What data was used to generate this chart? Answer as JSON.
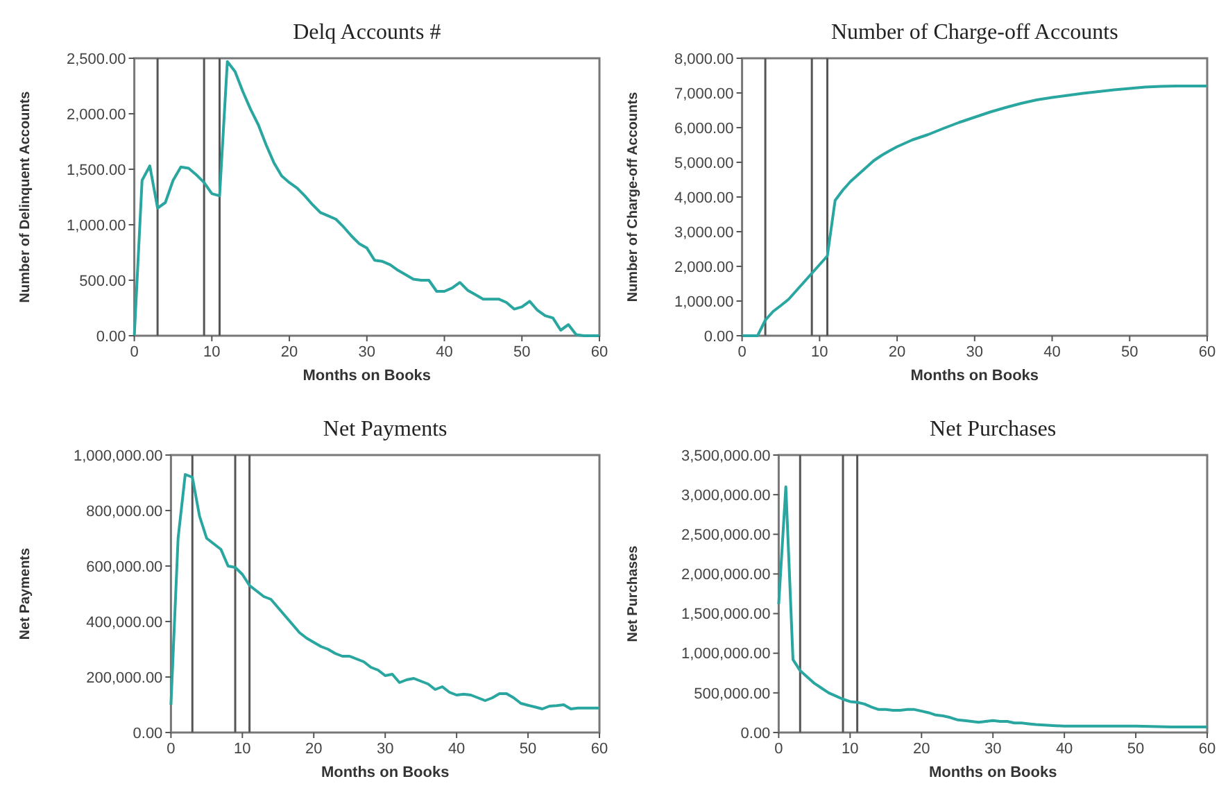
{
  "chart_data": [
    {
      "type": "line",
      "title": "Delq Accounts #",
      "xlabel": "Months on Books",
      "ylabel": "Number of Delinquent Accounts",
      "xlim": [
        0,
        60
      ],
      "xticks": [
        0,
        10,
        20,
        30,
        40,
        50,
        60
      ],
      "ylim": [
        0,
        2500
      ],
      "yticks": [
        {
          "value": 0,
          "label": "0.00"
        },
        {
          "value": 500,
          "label": "500.00"
        },
        {
          "value": 1000,
          "label": "1,000.00"
        },
        {
          "value": 1500,
          "label": "1,500.00"
        },
        {
          "value": 2000,
          "label": "2,000.00"
        },
        {
          "value": 2500,
          "label": "2,500.00"
        }
      ],
      "grid": false,
      "marker": "none",
      "line_style": "solid",
      "x": [
        0,
        1,
        2,
        3,
        4,
        5,
        6,
        7,
        8,
        9,
        10,
        11,
        12,
        13,
        14,
        15,
        16,
        17,
        18,
        19,
        20,
        21,
        22,
        23,
        24,
        25,
        26,
        27,
        28,
        29,
        30,
        31,
        32,
        33,
        34,
        35,
        36,
        37,
        38,
        39,
        40,
        41,
        42,
        43,
        44,
        45,
        46,
        47,
        48,
        49,
        50,
        51,
        52,
        53,
        54,
        55,
        56,
        57,
        58,
        59,
        60
      ],
      "series": [
        {
          "color": "#2aa6a0",
          "values": [
            0,
            1400,
            1530,
            1150,
            1200,
            1400,
            1520,
            1510,
            1450,
            1380,
            1280,
            1260,
            2470,
            2380,
            2200,
            2040,
            1900,
            1720,
            1560,
            1440,
            1380,
            1330,
            1260,
            1180,
            1110,
            1080,
            1050,
            980,
            900,
            830,
            790,
            680,
            670,
            640,
            590,
            550,
            510,
            500,
            500,
            400,
            400,
            430,
            480,
            410,
            370,
            330,
            330,
            330,
            300,
            240,
            260,
            310,
            230,
            180,
            160,
            50,
            100,
            10,
            0,
            0,
            0
          ]
        }
      ],
      "ref_lines": [
        {
          "axis": "x",
          "value": 3,
          "color": "#555555"
        },
        {
          "axis": "x",
          "value": 9,
          "color": "#555555"
        },
        {
          "axis": "x",
          "value": 11,
          "color": "#555555"
        }
      ]
    },
    {
      "type": "line",
      "title": "Number of Charge-off Accounts",
      "xlabel": "Months on Books",
      "ylabel": "Number of Charge-off Accounts",
      "xlim": [
        0,
        60
      ],
      "xticks": [
        0,
        10,
        20,
        30,
        40,
        50,
        60
      ],
      "ylim": [
        0,
        8000
      ],
      "yticks": [
        {
          "value": 0,
          "label": "0.00"
        },
        {
          "value": 1000,
          "label": "1,000.00"
        },
        {
          "value": 2000,
          "label": "2,000.00"
        },
        {
          "value": 3000,
          "label": "3,000.00"
        },
        {
          "value": 4000,
          "label": "4,000.00"
        },
        {
          "value": 5000,
          "label": "5,000.00"
        },
        {
          "value": 6000,
          "label": "6,000.00"
        },
        {
          "value": 7000,
          "label": "7,000.00"
        },
        {
          "value": 8000,
          "label": "8,000.00"
        }
      ],
      "grid": false,
      "marker": "none",
      "line_style": "solid",
      "x": [
        0,
        1,
        2,
        3,
        4,
        5,
        6,
        7,
        8,
        9,
        10,
        11,
        12,
        13,
        14,
        15,
        16,
        17,
        18,
        19,
        20,
        22,
        24,
        26,
        28,
        30,
        32,
        34,
        36,
        38,
        40,
        42,
        44,
        46,
        48,
        50,
        52,
        54,
        56,
        58,
        60
      ],
      "series": [
        {
          "color": "#2aa6a0",
          "values": [
            0,
            0,
            0,
            450,
            700,
            870,
            1050,
            1300,
            1550,
            1800,
            2050,
            2300,
            3900,
            4200,
            4450,
            4650,
            4850,
            5050,
            5200,
            5330,
            5450,
            5650,
            5800,
            5980,
            6150,
            6300,
            6450,
            6580,
            6700,
            6800,
            6870,
            6930,
            6990,
            7040,
            7090,
            7130,
            7170,
            7190,
            7200,
            7200,
            7200
          ]
        }
      ],
      "ref_lines": [
        {
          "axis": "x",
          "value": 3,
          "color": "#555555"
        },
        {
          "axis": "x",
          "value": 9,
          "color": "#555555"
        },
        {
          "axis": "x",
          "value": 11,
          "color": "#555555"
        }
      ]
    },
    {
      "type": "line",
      "title": "Net Payments",
      "xlabel": "Months on Books",
      "ylabel": "Net Payments",
      "xlim": [
        0,
        60
      ],
      "xticks": [
        0,
        10,
        20,
        30,
        40,
        50,
        60
      ],
      "ylim": [
        0,
        1000000
      ],
      "yticks": [
        {
          "value": 0,
          "label": "0.00"
        },
        {
          "value": 200000,
          "label": "200,000.00"
        },
        {
          "value": 400000,
          "label": "400,000.00"
        },
        {
          "value": 600000,
          "label": "600,000.00"
        },
        {
          "value": 800000,
          "label": "800,000.00"
        },
        {
          "value": 1000000,
          "label": "1,000,000.00"
        }
      ],
      "grid": false,
      "marker": "none",
      "line_style": "solid",
      "x": [
        0,
        1,
        2,
        3,
        4,
        5,
        6,
        7,
        8,
        9,
        10,
        11,
        12,
        13,
        14,
        15,
        16,
        17,
        18,
        19,
        20,
        21,
        22,
        23,
        24,
        25,
        26,
        27,
        28,
        29,
        30,
        31,
        32,
        33,
        34,
        35,
        36,
        37,
        38,
        39,
        40,
        41,
        42,
        43,
        44,
        45,
        46,
        47,
        48,
        49,
        50,
        51,
        52,
        53,
        54,
        55,
        56,
        57,
        58,
        59,
        60
      ],
      "series": [
        {
          "color": "#2aa6a0",
          "values": [
            100000,
            700000,
            930000,
            920000,
            780000,
            700000,
            680000,
            660000,
            600000,
            595000,
            570000,
            530000,
            510000,
            490000,
            480000,
            450000,
            420000,
            390000,
            360000,
            340000,
            325000,
            310000,
            300000,
            285000,
            275000,
            275000,
            265000,
            255000,
            235000,
            225000,
            205000,
            210000,
            180000,
            190000,
            195000,
            185000,
            175000,
            155000,
            165000,
            145000,
            135000,
            138000,
            135000,
            125000,
            115000,
            125000,
            140000,
            140000,
            125000,
            105000,
            98000,
            92000,
            85000,
            95000,
            97000,
            100000,
            85000,
            88000,
            88000,
            88000,
            88000
          ]
        }
      ],
      "ref_lines": [
        {
          "axis": "x",
          "value": 3,
          "color": "#555555"
        },
        {
          "axis": "x",
          "value": 9,
          "color": "#555555"
        },
        {
          "axis": "x",
          "value": 11,
          "color": "#555555"
        }
      ]
    },
    {
      "type": "line",
      "title": "Net Purchases",
      "xlabel": "Months on Books",
      "ylabel": "Net Purchases",
      "xlim": [
        0,
        60
      ],
      "xticks": [
        0,
        10,
        20,
        30,
        40,
        50,
        60
      ],
      "ylim": [
        0,
        3500000
      ],
      "yticks": [
        {
          "value": 0,
          "label": "0.00"
        },
        {
          "value": 500000,
          "label": "500,000.00"
        },
        {
          "value": 1000000,
          "label": "1,000,000.00"
        },
        {
          "value": 1500000,
          "label": "1,500,000.00"
        },
        {
          "value": 2000000,
          "label": "2,000,000.00"
        },
        {
          "value": 2500000,
          "label": "2,500,000.00"
        },
        {
          "value": 3000000,
          "label": "3,000,000.00"
        },
        {
          "value": 3500000,
          "label": "3,500,000.00"
        }
      ],
      "grid": false,
      "marker": "none",
      "line_style": "solid",
      "x": [
        0,
        1,
        2,
        3,
        4,
        5,
        6,
        7,
        8,
        9,
        10,
        11,
        12,
        13,
        14,
        15,
        16,
        17,
        18,
        19,
        20,
        21,
        22,
        23,
        24,
        25,
        26,
        27,
        28,
        29,
        30,
        31,
        32,
        33,
        34,
        35,
        36,
        38,
        40,
        45,
        50,
        55,
        60
      ],
      "series": [
        {
          "color": "#2aa6a0",
          "values": [
            1620000,
            3100000,
            920000,
            780000,
            700000,
            620000,
            560000,
            500000,
            460000,
            420000,
            390000,
            380000,
            360000,
            320000,
            290000,
            290000,
            280000,
            280000,
            290000,
            290000,
            270000,
            250000,
            220000,
            210000,
            190000,
            160000,
            150000,
            140000,
            130000,
            140000,
            150000,
            140000,
            140000,
            120000,
            120000,
            110000,
            100000,
            90000,
            80000,
            80000,
            80000,
            70000,
            70000
          ]
        }
      ],
      "ref_lines": [
        {
          "axis": "x",
          "value": 3,
          "color": "#555555"
        },
        {
          "axis": "x",
          "value": 9,
          "color": "#555555"
        },
        {
          "axis": "x",
          "value": 11,
          "color": "#555555"
        }
      ]
    }
  ]
}
